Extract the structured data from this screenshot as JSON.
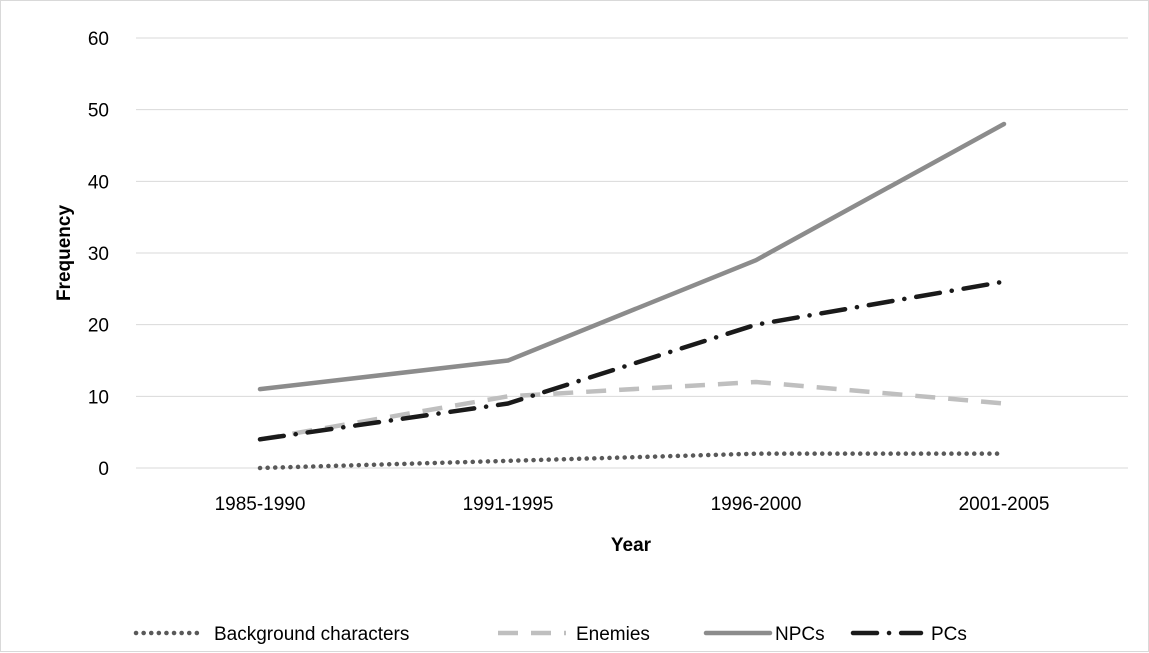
{
  "chart_data": {
    "type": "line",
    "title": "",
    "xlabel": "Year",
    "ylabel": "Frequency",
    "categories": [
      "1985-1990",
      "1991-1995",
      "1996-2000",
      "2001-2005"
    ],
    "ylim": [
      0,
      60
    ],
    "yticks": [
      0,
      10,
      20,
      30,
      40,
      50,
      60
    ],
    "grid": "horizontal",
    "legend_position": "bottom",
    "series": [
      {
        "name": "Background characters",
        "values": [
          0,
          1,
          2,
          2
        ],
        "color": "#595959",
        "style": "dotted"
      },
      {
        "name": "Enemies",
        "values": [
          4,
          10,
          12,
          9
        ],
        "color": "#bfbfbf",
        "style": "dashed"
      },
      {
        "name": "NPCs",
        "values": [
          11,
          15,
          29,
          48
        ],
        "color": "#8c8c8c",
        "style": "solid"
      },
      {
        "name": "PCs",
        "values": [
          4,
          9,
          20,
          26
        ],
        "color": "#1a1a1a",
        "style": "dash-dot"
      }
    ]
  }
}
